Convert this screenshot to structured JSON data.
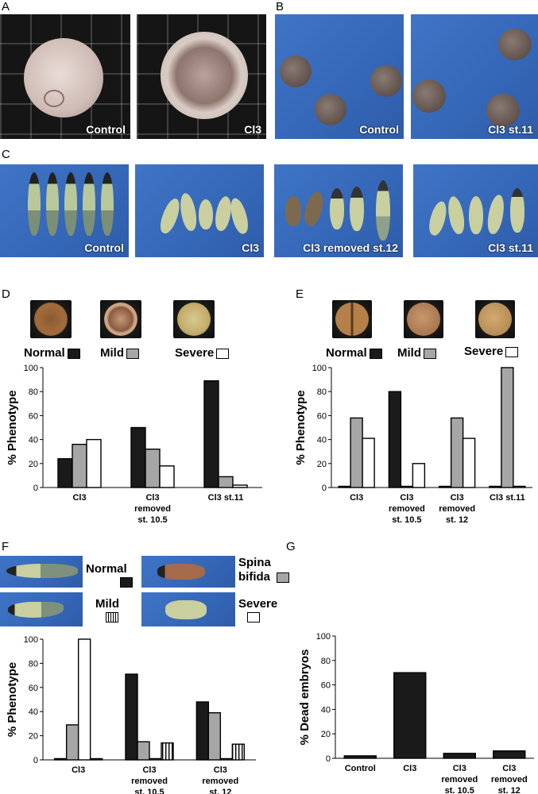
{
  "panels": {
    "A": {
      "letter": "A",
      "captions": [
        "Control",
        "Cl3"
      ]
    },
    "B": {
      "letter": "B",
      "captions": [
        "Control",
        "Cl3 st.11"
      ]
    },
    "C": {
      "letter": "C",
      "captions": [
        "Control",
        "Cl3",
        "Cl3 removed  st.12",
        "Cl3 st.11"
      ]
    },
    "D": {
      "letter": "D"
    },
    "E": {
      "letter": "E"
    },
    "F": {
      "letter": "F"
    },
    "G": {
      "letter": "G"
    }
  },
  "legends": {
    "normal": "Normal",
    "mild": "Mild",
    "severe": "Severe",
    "spina": "Spina",
    "bifida": "bifida"
  },
  "colors": {
    "normal": "#1a1a1a",
    "mild": "#a6a6a6",
    "severe": "#ffffff"
  },
  "chart_data": [
    {
      "id": "D",
      "type": "bar",
      "ylabel": "% Phenotype",
      "ylim": [
        0,
        100
      ],
      "yticks": [
        0,
        20,
        40,
        60,
        80,
        100
      ],
      "categories": [
        [
          "Cl3"
        ],
        [
          "Cl3",
          "removed",
          "st. 10.5"
        ],
        [
          "Cl3 st.11"
        ]
      ],
      "series": [
        {
          "name": "Normal",
          "fill": "#1a1a1a",
          "values": [
            24,
            50,
            89
          ]
        },
        {
          "name": "Mild",
          "fill": "#a6a6a6",
          "values": [
            36,
            32,
            9
          ]
        },
        {
          "name": "Severe",
          "fill": "#ffffff",
          "values": [
            40,
            18,
            2
          ]
        }
      ]
    },
    {
      "id": "E",
      "type": "bar",
      "ylabel": "% Phenotype",
      "ylim": [
        0,
        100
      ],
      "yticks": [
        0,
        20,
        40,
        60,
        80,
        100
      ],
      "categories": [
        [
          "Cl3"
        ],
        [
          "Cl3",
          "removed",
          "st. 10.5"
        ],
        [
          "Cl3",
          "removed",
          "st. 12"
        ],
        [
          "Cl3 st.11"
        ]
      ],
      "series": [
        {
          "name": "Normal",
          "fill": "#1a1a1a",
          "values": [
            1,
            80,
            1,
            1
          ]
        },
        {
          "name": "Mild",
          "fill": "#a6a6a6",
          "values": [
            58,
            1,
            58,
            100
          ]
        },
        {
          "name": "Severe",
          "fill": "#ffffff",
          "values": [
            41,
            20,
            41,
            1
          ]
        }
      ]
    },
    {
      "id": "F",
      "type": "bar",
      "ylabel": "% Phenotype",
      "ylim": [
        0,
        100
      ],
      "yticks": [
        0,
        20,
        40,
        60,
        80,
        100
      ],
      "categories": [
        [
          "Cl3"
        ],
        [
          "Cl3",
          "removed",
          "st. 10.5"
        ],
        [
          "Cl3",
          "removed",
          "st. 12"
        ]
      ],
      "series": [
        {
          "name": "Normal",
          "fill": "#1a1a1a",
          "values": [
            1,
            71,
            48
          ]
        },
        {
          "name": "Spina bifida",
          "fill": "#a6a6a6",
          "values": [
            29,
            15,
            39
          ]
        },
        {
          "name": "Severe",
          "fill": "#ffffff",
          "values": [
            100,
            1,
            1
          ]
        },
        {
          "name": "Mild",
          "fill": "hatch",
          "values": [
            1,
            14,
            13
          ]
        }
      ]
    },
    {
      "id": "G",
      "type": "bar",
      "ylabel": "% Dead embryos",
      "ylim": [
        0,
        100
      ],
      "yticks": [
        0,
        20,
        40,
        60,
        80,
        100
      ],
      "categories": [
        [
          "Control"
        ],
        [
          "Cl3"
        ],
        [
          "Cl3",
          "removed",
          "st. 10.5"
        ],
        [
          "Cl3",
          "removed",
          "st. 12"
        ]
      ],
      "series": [
        {
          "name": "Dead",
          "fill": "#1a1a1a",
          "values": [
            2,
            70,
            4,
            6
          ]
        }
      ]
    }
  ]
}
